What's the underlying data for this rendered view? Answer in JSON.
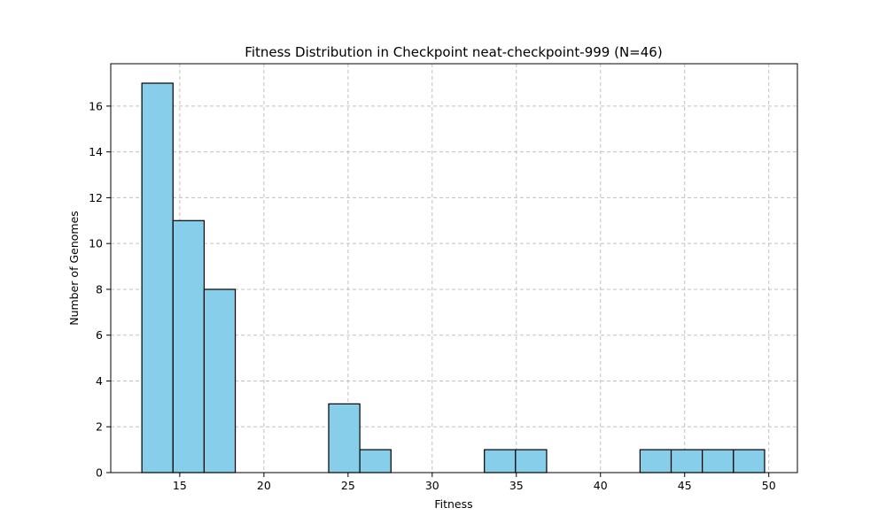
{
  "chart_data": {
    "type": "bar",
    "title": "Fitness Distribution in Checkpoint neat-checkpoint-999 (N=46)",
    "xlabel": "Fitness",
    "ylabel": "Number of Genomes",
    "xlim": [
      10.9,
      51.7
    ],
    "ylim": [
      0,
      17.85
    ],
    "xticks": [
      15,
      20,
      25,
      30,
      35,
      40,
      45,
      50
    ],
    "yticks": [
      0,
      2,
      4,
      6,
      8,
      10,
      12,
      14,
      16
    ],
    "grid": true,
    "bins": [
      {
        "x0": 12.75,
        "x1": 14.6,
        "count": 17
      },
      {
        "x0": 14.6,
        "x1": 16.45,
        "count": 11
      },
      {
        "x0": 16.45,
        "x1": 18.3,
        "count": 8
      },
      {
        "x0": 18.3,
        "x1": 20.15,
        "count": 0
      },
      {
        "x0": 20.15,
        "x1": 22.0,
        "count": 0
      },
      {
        "x0": 22.0,
        "x1": 23.85,
        "count": 0
      },
      {
        "x0": 23.85,
        "x1": 25.7,
        "count": 3
      },
      {
        "x0": 25.7,
        "x1": 27.55,
        "count": 1
      },
      {
        "x0": 27.55,
        "x1": 29.4,
        "count": 0
      },
      {
        "x0": 29.4,
        "x1": 31.25,
        "count": 0
      },
      {
        "x0": 31.25,
        "x1": 33.1,
        "count": 0
      },
      {
        "x0": 33.1,
        "x1": 34.95,
        "count": 1
      },
      {
        "x0": 34.95,
        "x1": 36.8,
        "count": 1
      },
      {
        "x0": 36.8,
        "x1": 38.65,
        "count": 0
      },
      {
        "x0": 38.65,
        "x1": 40.5,
        "count": 0
      },
      {
        "x0": 40.5,
        "x1": 42.35,
        "count": 0
      },
      {
        "x0": 42.35,
        "x1": 44.2,
        "count": 1
      },
      {
        "x0": 44.2,
        "x1": 46.05,
        "count": 1
      },
      {
        "x0": 46.05,
        "x1": 47.9,
        "count": 1
      },
      {
        "x0": 47.9,
        "x1": 49.75,
        "count": 1
      }
    ],
    "colors": {
      "bar_fill": "#87ceeb",
      "bar_edge": "#000000",
      "grid": "#c0c0c0"
    }
  }
}
